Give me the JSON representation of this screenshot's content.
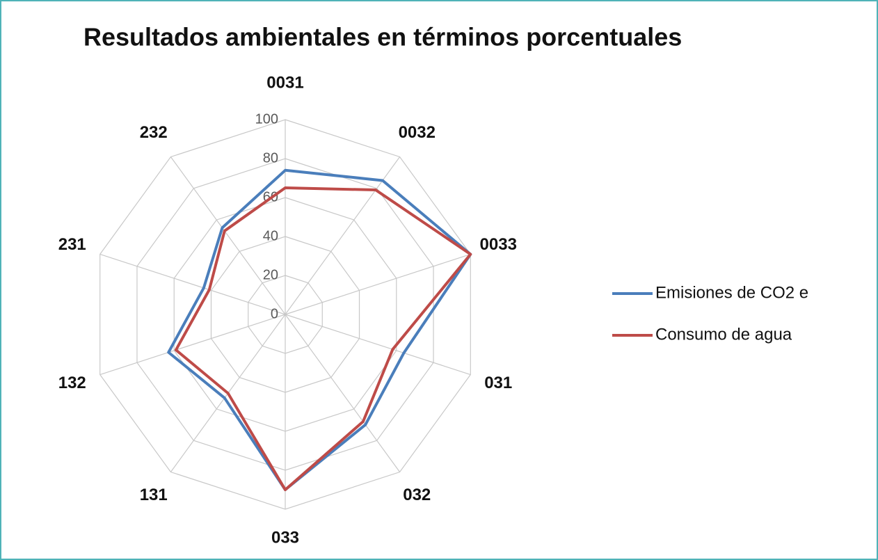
{
  "chart_data": {
    "type": "radar",
    "title": "Resultados ambientales en términos porcentuales",
    "categories": [
      "0031",
      "0032",
      "0033",
      "031",
      "032",
      "033",
      "131",
      "132",
      "231",
      "232"
    ],
    "series": [
      {
        "name": "Emisiones de CO2 e",
        "color": "#4a7ebb",
        "values": [
          74,
          85,
          100,
          64,
          70,
          90,
          53,
          63,
          44,
          55
        ]
      },
      {
        "name": "Consumo de agua",
        "color": "#be4b48",
        "values": [
          65,
          79,
          100,
          58,
          68,
          90,
          50,
          59,
          41,
          53
        ]
      }
    ],
    "rlim": [
      0,
      100
    ],
    "rticks": [
      0,
      20,
      40,
      60,
      80,
      100
    ],
    "grid": true,
    "legend": "right"
  }
}
